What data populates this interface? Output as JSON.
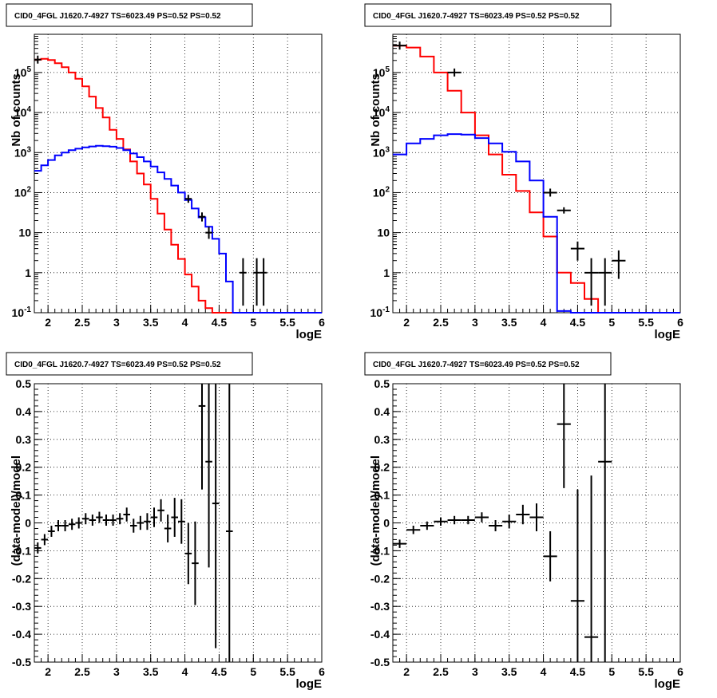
{
  "chart_data": [
    {
      "type": "histogram",
      "title": "CID0_4FGL J1620.7-4927 TS=6023.49 PS=0.52 PS=0.52",
      "xlabel": "logE",
      "ylabel": "Nb of counts",
      "xlim": [
        1.8,
        6.0
      ],
      "ylim": [
        0.1,
        900000
      ],
      "yscale": "log",
      "grid": true,
      "x_ticks": [
        "2",
        "2.5",
        "3",
        "3.5",
        "4",
        "4.5",
        "5",
        "5.5",
        "6"
      ],
      "y_ticks": [
        "10^-1",
        "1",
        "10",
        "10^2",
        "10^3",
        "10^4",
        "10^5"
      ],
      "bins": [
        1.8,
        1.9,
        2.0,
        2.1,
        2.2,
        2.3,
        2.4,
        2.5,
        2.6,
        2.7,
        2.8,
        2.9,
        3.0,
        3.1,
        3.2,
        3.3,
        3.4,
        3.5,
        3.6,
        3.7,
        3.8,
        3.9,
        4.0,
        4.1,
        4.2,
        4.3,
        4.4,
        4.5,
        4.6,
        4.7,
        4.8,
        4.9,
        5.0,
        5.1,
        5.2,
        5.3,
        5.4,
        5.5,
        5.6,
        5.7,
        5.8,
        5.9,
        6.0
      ],
      "series": [
        {
          "color": "#ff0000",
          "values": [
            210000,
            220000,
            205000,
            170000,
            135000,
            100000,
            70000,
            45000,
            25000,
            13000,
            7500,
            3700,
            2200,
            1200,
            600,
            300,
            160,
            70,
            30,
            12,
            5,
            2.2,
            0.9,
            0.45,
            0.2,
            0.13,
            0.1,
            0.1,
            0.1,
            0.1,
            0.1,
            0.1,
            0.1,
            0.1,
            0.1,
            0.1,
            0.1,
            0.1,
            0.1,
            0.1,
            0.1,
            0.1
          ]
        },
        {
          "color": "#0000ff",
          "values": [
            350,
            480,
            650,
            850,
            1000,
            1150,
            1250,
            1350,
            1420,
            1480,
            1450,
            1400,
            1300,
            1150,
            950,
            770,
            600,
            450,
            320,
            220,
            150,
            100,
            65,
            40,
            24,
            14,
            7,
            3,
            0.6,
            0.1,
            0.1,
            0.1,
            0.1,
            0.1,
            0.1,
            0.1,
            0.1,
            0.1,
            0.1,
            0.1,
            0.1,
            0.1
          ]
        }
      ],
      "data_points": [
        {
          "x": 1.85,
          "y": 210000
        },
        {
          "x": 4.05,
          "y": 70
        },
        {
          "x": 4.25,
          "y": 25,
          "ylo": 19,
          "yhi": 32
        },
        {
          "x": 4.35,
          "y": 10,
          "ylo": 7,
          "yhi": 14
        },
        {
          "x": 4.85,
          "y": 1,
          "ylo": 0.15,
          "yhi": 2.3
        },
        {
          "x": 5.05,
          "y": 1,
          "ylo": 0.15,
          "yhi": 2.3
        },
        {
          "x": 5.15,
          "y": 1,
          "ylo": 0.15,
          "yhi": 2.3
        }
      ]
    },
    {
      "type": "histogram",
      "title": "CID0_4FGL J1620.7-4927 TS=6023.49 PS=0.52 PS=0.52",
      "xlabel": "logE",
      "ylabel": "Nb of counts",
      "xlim": [
        1.8,
        6.0
      ],
      "ylim": [
        0.1,
        900000
      ],
      "yscale": "log",
      "grid": true,
      "x_ticks": [
        "2",
        "2.5",
        "3",
        "3.5",
        "4",
        "4.5",
        "5",
        "5.5",
        "6"
      ],
      "y_ticks": [
        "10^-1",
        "1",
        "10",
        "10^2",
        "10^3",
        "10^4",
        "10^5"
      ],
      "bins": [
        1.8,
        2.0,
        2.2,
        2.4,
        2.6,
        2.8,
        3.0,
        3.2,
        3.4,
        3.6,
        3.8,
        4.0,
        4.2,
        4.4,
        4.6,
        4.8,
        5.0,
        5.2,
        5.4,
        5.6,
        5.8,
        6.0
      ],
      "series": [
        {
          "color": "#ff0000",
          "values": [
            470000,
            420000,
            250000,
            100000,
            35000,
            10000,
            2700,
            900,
            280,
            110,
            32,
            8,
            1,
            0.55,
            0.22,
            0.1,
            0.1,
            0.1,
            0.1,
            0.1,
            0.1
          ]
        },
        {
          "color": "#0000ff",
          "values": [
            900,
            1700,
            2200,
            2700,
            2900,
            2800,
            2300,
            1700,
            1050,
            600,
            200,
            25,
            0.11,
            0.1,
            0.1,
            0.1,
            0.1,
            0.1,
            0.1,
            0.1,
            0.1
          ]
        }
      ],
      "data_points": [
        {
          "x": 1.9,
          "y": 470000
        },
        {
          "x": 2.7,
          "y": 100000
        },
        {
          "x": 4.1,
          "y": 100
        },
        {
          "x": 4.3,
          "y": 36,
          "ylo": 30,
          "yhi": 43
        },
        {
          "x": 4.5,
          "y": 4,
          "ylo": 2,
          "yhi": 6
        },
        {
          "x": 4.7,
          "y": 1,
          "ylo": 0.15,
          "yhi": 2.3
        },
        {
          "x": 4.9,
          "y": 1,
          "ylo": 0.15,
          "yhi": 2.3
        },
        {
          "x": 5.1,
          "y": 2,
          "ylo": 0.7,
          "yhi": 3.6
        }
      ]
    },
    {
      "type": "scatter",
      "title": "CID0_4FGL J1620.7-4927 TS=6023.49 PS=0.52 PS=0.52",
      "xlabel": "logE",
      "ylabel": "(data-model)/model",
      "xlim": [
        1.8,
        6.0
      ],
      "ylim": [
        -0.5,
        0.5
      ],
      "grid": true,
      "x_ticks": [
        "2",
        "2.5",
        "3",
        "3.5",
        "4",
        "4.5",
        "5",
        "5.5",
        "6"
      ],
      "y_ticks": [
        "-0.5",
        "-0.4",
        "-0.3",
        "-0.2",
        "-0.1",
        "0",
        "0.1",
        "0.2",
        "0.3",
        "0.4",
        "0.5"
      ],
      "bin_width": 0.1,
      "points": [
        {
          "x": 1.85,
          "y": -0.09,
          "e": 0.02
        },
        {
          "x": 1.95,
          "y": -0.06,
          "e": 0.02
        },
        {
          "x": 2.05,
          "y": -0.03,
          "e": 0.02
        },
        {
          "x": 2.15,
          "y": -0.01,
          "e": 0.02
        },
        {
          "x": 2.25,
          "y": -0.01,
          "e": 0.02
        },
        {
          "x": 2.35,
          "y": -0.005,
          "e": 0.02
        },
        {
          "x": 2.45,
          "y": 0.0,
          "e": 0.02
        },
        {
          "x": 2.55,
          "y": 0.015,
          "e": 0.02
        },
        {
          "x": 2.65,
          "y": 0.01,
          "e": 0.02
        },
        {
          "x": 2.75,
          "y": 0.02,
          "e": 0.02
        },
        {
          "x": 2.85,
          "y": 0.01,
          "e": 0.02
        },
        {
          "x": 2.95,
          "y": 0.01,
          "e": 0.02
        },
        {
          "x": 3.05,
          "y": 0.015,
          "e": 0.02
        },
        {
          "x": 3.15,
          "y": 0.03,
          "e": 0.025
        },
        {
          "x": 3.25,
          "y": -0.01,
          "e": 0.025
        },
        {
          "x": 3.35,
          "y": 0.0,
          "e": 0.025
        },
        {
          "x": 3.45,
          "y": 0.005,
          "e": 0.03
        },
        {
          "x": 3.55,
          "y": 0.02,
          "e": 0.035
        },
        {
          "x": 3.65,
          "y": 0.045,
          "e": 0.04
        },
        {
          "x": 3.75,
          "y": -0.02,
          "e": 0.05
        },
        {
          "x": 3.85,
          "y": 0.02,
          "e": 0.07
        },
        {
          "x": 3.95,
          "y": 0.005,
          "e": 0.08
        },
        {
          "x": 4.05,
          "y": -0.11,
          "e": 0.11
        },
        {
          "x": 4.15,
          "y": -0.145,
          "e": 0.15
        },
        {
          "x": 4.25,
          "y": 0.42,
          "e": 0.3
        },
        {
          "x": 4.35,
          "y": 0.22,
          "e": 0.38
        },
        {
          "x": 4.45,
          "y": 0.07,
          "e": 0.52
        },
        {
          "x": 4.65,
          "y": -0.03,
          "e": 0.9
        }
      ]
    },
    {
      "type": "scatter",
      "title": "CID0_4FGL J1620.7-4927 TS=6023.49 PS=0.52 PS=0.52",
      "xlabel": "logE",
      "ylabel": "(data-model)/model",
      "xlim": [
        1.8,
        6.0
      ],
      "ylim": [
        -0.5,
        0.5
      ],
      "grid": true,
      "x_ticks": [
        "2",
        "2.5",
        "3",
        "3.5",
        "4",
        "4.5",
        "5",
        "5.5",
        "6"
      ],
      "y_ticks": [
        "-0.5",
        "-0.4",
        "-0.3",
        "-0.2",
        "-0.1",
        "0",
        "0.1",
        "0.2",
        "0.3",
        "0.4",
        "0.5"
      ],
      "bin_width": 0.2,
      "points": [
        {
          "x": 1.9,
          "y": -0.075,
          "e": 0.015
        },
        {
          "x": 2.1,
          "y": -0.025,
          "e": 0.015
        },
        {
          "x": 2.3,
          "y": -0.01,
          "e": 0.015
        },
        {
          "x": 2.5,
          "y": 0.005,
          "e": 0.015
        },
        {
          "x": 2.7,
          "y": 0.01,
          "e": 0.015
        },
        {
          "x": 2.9,
          "y": 0.01,
          "e": 0.015
        },
        {
          "x": 3.1,
          "y": 0.02,
          "e": 0.018
        },
        {
          "x": 3.3,
          "y": -0.01,
          "e": 0.02
        },
        {
          "x": 3.5,
          "y": 0.005,
          "e": 0.025
        },
        {
          "x": 3.7,
          "y": 0.03,
          "e": 0.035
        },
        {
          "x": 3.9,
          "y": 0.02,
          "e": 0.05
        },
        {
          "x": 4.1,
          "y": -0.12,
          "e": 0.09
        },
        {
          "x": 4.3,
          "y": 0.355,
          "e": 0.23
        },
        {
          "x": 4.5,
          "y": -0.28,
          "e": 0.4
        },
        {
          "x": 4.7,
          "y": -0.41,
          "e": 0.58
        },
        {
          "x": 4.9,
          "y": 0.22,
          "e": 0.9
        }
      ]
    }
  ]
}
